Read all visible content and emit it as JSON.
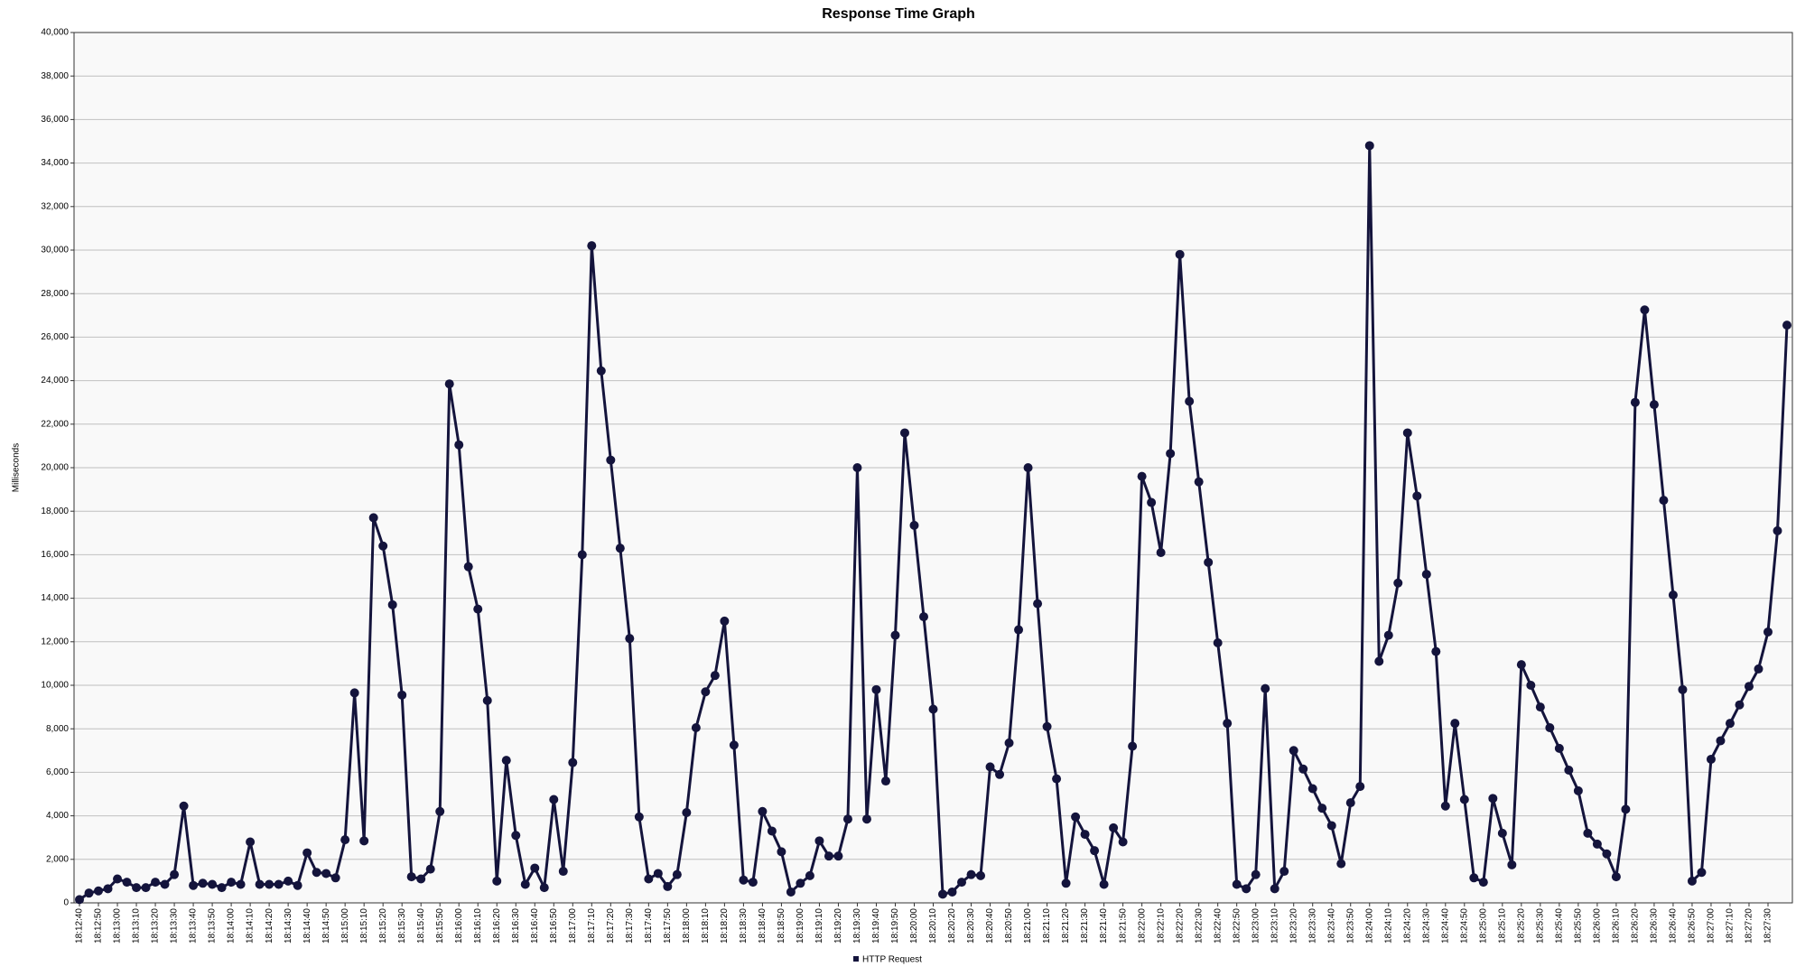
{
  "chart_data": {
    "type": "line",
    "title": "Response Time Graph",
    "y_label": "Milliseconds",
    "categories": [
      "18:12:40",
      null,
      "18:12:50",
      null,
      "18:13:00",
      null,
      "18:13:10",
      null,
      "18:13:20",
      null,
      "18:13:30",
      null,
      "18:13:40",
      null,
      "18:13:50",
      null,
      "18:14:00",
      null,
      "18:14:10",
      null,
      "18:14:20",
      null,
      "18:14:30",
      null,
      "18:14:40",
      null,
      "18:14:50",
      null,
      "18:15:00",
      null,
      "18:15:10",
      null,
      "18:15:20",
      null,
      "18:15:30",
      null,
      "18:15:40",
      null,
      "18:15:50",
      null,
      "18:16:00",
      null,
      "18:16:10",
      null,
      "18:16:20",
      null,
      "18:16:30",
      null,
      "18:16:40",
      null,
      "18:16:50",
      null,
      "18:17:00",
      null,
      "18:17:10",
      null,
      "18:17:20",
      null,
      "18:17:30",
      null,
      "18:17:40",
      null,
      "18:17:50",
      null,
      "18:18:00",
      null,
      "18:18:10",
      null,
      "18:18:20",
      null,
      "18:18:30",
      null,
      "18:18:40",
      null,
      "18:18:50",
      null,
      "18:19:00",
      null,
      "18:19:10",
      null,
      "18:19:20",
      null,
      "18:19:30",
      null,
      "18:19:40",
      null,
      "18:19:50",
      null,
      "18:20:00",
      null,
      "18:20:10",
      null,
      "18:20:20",
      null,
      "18:20:30",
      null,
      "18:20:40",
      null,
      "18:20:50",
      null,
      "18:21:00",
      null,
      "18:21:10",
      null,
      "18:21:20",
      null,
      "18:21:30",
      null,
      "18:21:40",
      null,
      "18:21:50",
      null,
      "18:22:00",
      null,
      "18:22:10",
      null,
      "18:22:20",
      null,
      "18:22:30",
      null,
      "18:22:40",
      null,
      "18:22:50",
      null,
      "18:23:00",
      null,
      "18:23:10",
      null,
      "18:23:20",
      null,
      "18:23:30",
      null,
      "18:23:40",
      null,
      "18:23:50",
      null,
      "18:24:00",
      null,
      "18:24:10",
      null,
      "18:24:20",
      null,
      "18:24:30",
      null,
      "18:24:40",
      null,
      "18:24:50",
      null,
      "18:25:00",
      null,
      "18:25:10",
      null,
      "18:25:20",
      null,
      "18:25:30",
      null,
      "18:25:40",
      null,
      "18:25:50",
      null,
      "18:26:00",
      null,
      "18:26:10",
      null,
      "18:26:20",
      null,
      "18:26:30",
      null,
      "18:26:40",
      null,
      "18:26:50",
      null,
      "18:27:00",
      null,
      "18:27:10",
      null,
      "18:27:20",
      null,
      "18:27:30",
      null,
      null
    ],
    "series": [
      {
        "name": "HTTP Request",
        "color": "#14143c",
        "values": [
          150,
          450,
          550,
          650,
          1100,
          950,
          700,
          700,
          950,
          850,
          1300,
          4450,
          800,
          900,
          850,
          700,
          950,
          850,
          2800,
          850,
          850,
          850,
          1000,
          800,
          2300,
          1400,
          1350,
          1150,
          2900,
          9650,
          2850,
          17700,
          16400,
          13700,
          9550,
          1200,
          1100,
          1550,
          4200,
          23850,
          21050,
          15450,
          13500,
          9300,
          1000,
          6550,
          3100,
          850,
          1600,
          700,
          4750,
          1450,
          6450,
          16000,
          30200,
          24450,
          20350,
          16300,
          12150,
          3950,
          1100,
          1350,
          750,
          1300,
          4150,
          8050,
          9700,
          10450,
          12950,
          7250,
          1050,
          950,
          4200,
          3300,
          2350,
          500,
          900,
          1250,
          2850,
          2150,
          2150,
          3850,
          20000,
          3850,
          9800,
          5600,
          12300,
          21600,
          17350,
          13150,
          8900,
          400,
          500,
          950,
          1300,
          1250,
          6250,
          5900,
          7350,
          12550,
          20000,
          13750,
          8100,
          5700,
          900,
          3950,
          3150,
          2400,
          850,
          3450,
          2800,
          7200,
          19600,
          18400,
          16100,
          20650,
          29800,
          23050,
          19350,
          15650,
          11950,
          8250,
          850,
          650,
          1300,
          9850,
          650,
          1450,
          7000,
          6150,
          5250,
          4350,
          3550,
          1800,
          4600,
          5350,
          34800,
          11100,
          12300,
          14700,
          21600,
          18700,
          15100,
          11550,
          4450,
          8250,
          4750,
          1150,
          950,
          4800,
          3200,
          1750,
          10950,
          10000,
          9000,
          8050,
          7100,
          6100,
          5150,
          3200,
          2700,
          2250,
          1200,
          4300,
          23000,
          27250,
          22900,
          18500,
          14150,
          9800,
          1000,
          1400,
          6600,
          7450,
          8250,
          9100,
          9950,
          10750,
          12450,
          17100,
          26550
        ]
      }
    ],
    "ylim": [
      0,
      40000
    ],
    "yticks": [
      0,
      {
        "value": 2000,
        "label": "2,000"
      },
      {
        "value": 4000,
        "label": "4,000"
      },
      {
        "value": 6000,
        "label": "6,000"
      },
      {
        "value": 8000,
        "label": "8,000"
      },
      {
        "value": 10000,
        "label": "10,000"
      },
      {
        "value": 12000,
        "label": "12,000"
      },
      {
        "value": 14000,
        "label": "14,000"
      },
      {
        "value": 16000,
        "label": "16,000"
      },
      {
        "value": 18000,
        "label": "18,000"
      },
      {
        "value": 20000,
        "label": "20,000"
      },
      {
        "value": 22000,
        "label": "22,000"
      },
      {
        "value": 24000,
        "label": "24,000"
      },
      {
        "value": 26000,
        "label": "26,000"
      },
      {
        "value": 28000,
        "label": "28,000"
      },
      {
        "value": 30000,
        "label": "30,000"
      },
      {
        "value": 32000,
        "label": "32,000"
      },
      {
        "value": 34000,
        "label": "34,000"
      },
      {
        "value": 36000,
        "label": "36,000"
      },
      {
        "value": 38000,
        "label": "38,000"
      },
      {
        "value": 40000,
        "label": "40,000"
      }
    ],
    "grid": true,
    "legend": "bottom"
  }
}
